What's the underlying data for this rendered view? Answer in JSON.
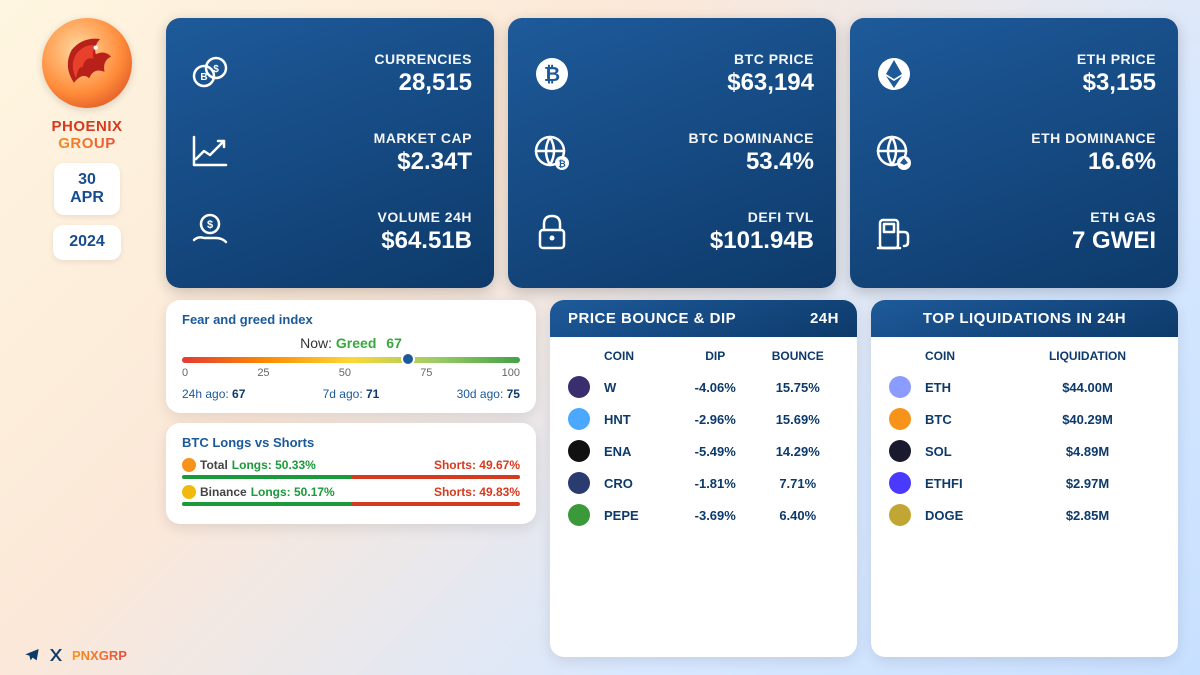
{
  "brand": {
    "line1": "PHOENIX",
    "line2": "GROUP",
    "color1": "#d63a1e",
    "color2_from": "#f7941e",
    "color2_to": "#e74c3c"
  },
  "date": {
    "day_month": "30\nAPR",
    "year": "2024"
  },
  "colors": {
    "card_grad_from": "#1e5a9a",
    "card_grad_to": "#0d3a6a",
    "text_dark": "#0d3a6a",
    "green": "#1a9a3a",
    "red": "#d63a1e"
  },
  "cards": [
    {
      "rows": [
        {
          "icon": "coins-icon",
          "label": "CURRENCIES",
          "value": "28,515"
        },
        {
          "icon": "chart-up-icon",
          "label": "MARKET CAP",
          "value": "$2.34T"
        },
        {
          "icon": "hand-dollar-icon",
          "label": "VOLUME 24H",
          "value": "$64.51B"
        }
      ]
    },
    {
      "rows": [
        {
          "icon": "bitcoin-icon",
          "label": "BTC PRICE",
          "value": "$63,194"
        },
        {
          "icon": "globe-btc-icon",
          "label": "BTC DOMINANCE",
          "value": "53.4%"
        },
        {
          "icon": "lock-icon",
          "label": "DEFI TVL",
          "value": "$101.94B"
        }
      ]
    },
    {
      "rows": [
        {
          "icon": "ethereum-icon",
          "label": "ETH PRICE",
          "value": "$3,155"
        },
        {
          "icon": "globe-eth-icon",
          "label": "ETH DOMINANCE",
          "value": "16.6%"
        },
        {
          "icon": "gas-pump-icon",
          "label": "ETH GAS",
          "value": "7 GWEI"
        }
      ]
    }
  ],
  "fear_greed": {
    "title": "Fear and greed index",
    "now_prefix": "Now:",
    "now_state": "Greed",
    "now_value": "67",
    "pointer_pct": 67,
    "ticks": [
      "0",
      "25",
      "50",
      "75",
      "100"
    ],
    "history": [
      {
        "label": "24h ago:",
        "value": "67"
      },
      {
        "label": "7d ago:",
        "value": "71"
      },
      {
        "label": "30d ago:",
        "value": "75"
      }
    ],
    "gradient": [
      "#e53935",
      "#fb8c00",
      "#fdd835",
      "#9ccc65",
      "#43a047"
    ],
    "state_color": "#37a93c"
  },
  "longs_shorts": {
    "title": "BTC Longs vs Shorts",
    "rows": [
      {
        "icon": "bitcoin-mini-icon",
        "icon_bg": "#f7931a",
        "name": "Total",
        "longs_label": "Longs:",
        "longs": "50.33%",
        "shorts_label": "Shorts:",
        "shorts": "49.67%",
        "long_pct": 50.33
      },
      {
        "icon": "binance-mini-icon",
        "icon_bg": "#f0b90b",
        "name": "Binance",
        "longs_label": "Longs:",
        "longs": "50.17%",
        "shorts_label": "Shorts:",
        "shorts": "49.83%",
        "long_pct": 50.17
      }
    ]
  },
  "price_bounce": {
    "title_left": "PRICE BOUNCE & DIP",
    "title_right": "24H",
    "headers": {
      "c2": "COIN",
      "c3": "DIP",
      "c4": "BOUNCE"
    },
    "rows": [
      {
        "symbol": "W",
        "dip": "-4.06%",
        "bounce": "15.75%",
        "dot_bg": "#3a2e6e"
      },
      {
        "symbol": "HNT",
        "dip": "-2.96%",
        "bounce": "15.69%",
        "dot_bg": "#4aa8ff"
      },
      {
        "symbol": "ENA",
        "dip": "-5.49%",
        "bounce": "14.29%",
        "dot_bg": "#111111"
      },
      {
        "symbol": "CRO",
        "dip": "-1.81%",
        "bounce": "7.71%",
        "dot_bg": "#2a3b6f"
      },
      {
        "symbol": "PEPE",
        "dip": "-3.69%",
        "bounce": "6.40%",
        "dot_bg": "#3a9a3a"
      }
    ]
  },
  "liquidations": {
    "title": "TOP LIQUIDATIONS IN 24H",
    "headers": {
      "c2": "COIN",
      "c3": "LIQUIDATION"
    },
    "rows": [
      {
        "symbol": "ETH",
        "value": "$44.00M",
        "dot_bg": "#8a9cff"
      },
      {
        "symbol": "BTC",
        "value": "$40.29M",
        "dot_bg": "#f7931a"
      },
      {
        "symbol": "SOL",
        "value": "$4.89M",
        "dot_bg": "#1a1a2e"
      },
      {
        "symbol": "ETHFI",
        "value": "$2.97M",
        "dot_bg": "#4a3aff"
      },
      {
        "symbol": "DOGE",
        "value": "$2.85M",
        "dot_bg": "#c2a633"
      }
    ]
  },
  "footer": {
    "handle": "PNXGRP"
  }
}
